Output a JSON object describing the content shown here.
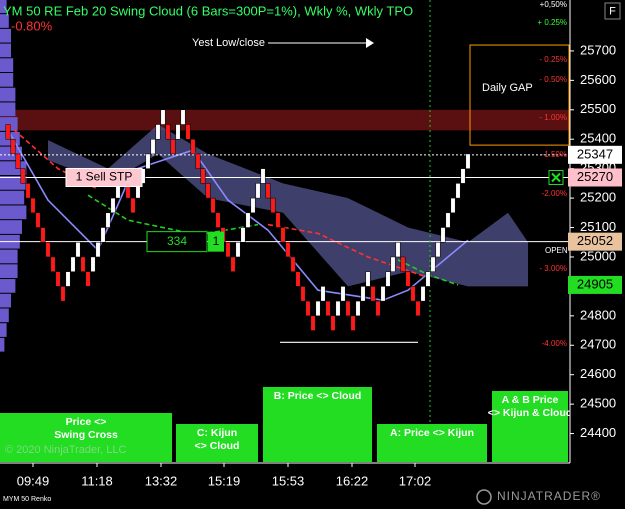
{
  "title": "YM 50 RE Feb 20 Swing Cloud (6 Bars=300P=1%), Wkly %, Wkly TPO",
  "change": "-0.80%",
  "button": "F",
  "instrument": "MYM 50 Renko",
  "copyright": "© 2020 NinjaTrader, LLC",
  "logo": "NINJATRADER®",
  "chart_data": {
    "type": "renko",
    "brick_size": 50,
    "up_color": "#ffffff",
    "down_color": "#ff1a1a",
    "closes": [
      25400,
      25350,
      25300,
      25250,
      25200,
      25150,
      25100,
      25050,
      25000,
      24950,
      24900,
      24850,
      24950,
      25000,
      25050,
      24950,
      24900,
      25000,
      25050,
      25100,
      25150,
      25200,
      25250,
      25300,
      25200,
      25150,
      25250,
      25300,
      25350,
      25400,
      25450,
      25500,
      25400,
      25350,
      25450,
      25500,
      25400,
      25350,
      25300,
      25250,
      25200,
      25150,
      25100,
      25050,
      25000,
      24950,
      25050,
      25100,
      25150,
      25200,
      25250,
      25300,
      25200,
      25150,
      25100,
      25050,
      25000,
      24950,
      24900,
      24850,
      24800,
      24750,
      24850,
      24900,
      24800,
      24750,
      24850,
      24900,
      24800,
      24750,
      24850,
      24900,
      24950,
      24850,
      24800,
      24900,
      24950,
      25000,
      25050,
      24950,
      24900,
      24850,
      24800,
      24900,
      24950,
      25000,
      25050,
      25100,
      25150,
      25200,
      25250,
      25300,
      25350
    ],
    "xlim": [
      -1.6,
      112.4
    ],
    "xticks": [
      {
        "value": 5,
        "label": "09:49"
      },
      {
        "value": 17.8,
        "label": "11:18"
      },
      {
        "value": 30.6,
        "label": "13:32"
      },
      {
        "value": 43.2,
        "label": "15:19"
      },
      {
        "value": 56,
        "label": "15:53"
      },
      {
        "value": 68.8,
        "label": "16:22"
      },
      {
        "value": 81.4,
        "label": "17:02"
      }
    ],
    "ylim": [
      24300,
      25873
    ],
    "yticks": [
      24400,
      24500,
      24600,
      24700,
      24800,
      24900,
      25000,
      25100,
      25200,
      25300,
      25400,
      25500,
      25600,
      25700
    ],
    "kijun": {
      "color": "#8a8aff",
      "x": [
        0,
        8,
        18,
        25,
        37,
        44,
        52,
        62,
        75,
        80,
        92
      ],
      "values": [
        25431,
        25193,
        25023,
        25295,
        25363,
        25193,
        25091,
        24887,
        24853,
        24887,
        25057
      ]
    },
    "red_line": {
      "color": "#ff3030",
      "x": [
        0,
        10,
        18,
        30,
        52,
        62,
        72,
        84
      ],
      "values": [
        25450,
        25300,
        25230,
        null,
        25110,
        25080,
        25000,
        24930
      ]
    },
    "green_line": {
      "color": "#22cc22",
      "x": [
        16,
        24,
        38,
        50,
        60,
        78,
        84,
        90
      ],
      "values": [
        25210,
        25125,
        25075,
        25110,
        null,
        24990,
        24940,
        24905
      ]
    },
    "cloud": {
      "color": "#5a5a99",
      "x": [
        8,
        20,
        30,
        40,
        55,
        68,
        80,
        92,
        100,
        104
      ],
      "upper": [
        25397,
        25300,
        25450,
        25350,
        25250,
        25200,
        25100,
        25050,
        25150,
        25050
      ],
      "lower": [
        25329,
        25250,
        25350,
        25200,
        25150,
        24900,
        24950,
        24900,
        24900,
        24900
      ]
    },
    "tpo": {
      "color": "#6a5acd",
      "start": 25850,
      "step": -50,
      "counts": [
        3,
        4,
        5,
        5,
        6,
        6,
        7,
        7,
        8,
        9,
        10,
        12,
        12,
        11,
        12,
        10,
        9,
        8,
        8,
        7,
        5,
        4,
        3,
        2
      ]
    },
    "percent_levels": [
      {
        "value": 25856,
        "label": "+0,50%",
        "color": "#ffffff"
      },
      {
        "value": 25795,
        "label": "+ 0.25%",
        "color": "#33ff33"
      },
      {
        "value": 25669,
        "label": "- 0.25%",
        "color": "#ff3333"
      },
      {
        "value": 25601,
        "label": "- 0.50%",
        "color": "#ff3333"
      },
      {
        "value": 25473,
        "label": "- 1.00%",
        "color": "#ff3333"
      },
      {
        "value": 25347,
        "label": "-1.50%",
        "color": "#ff3333"
      },
      {
        "value": 25214,
        "label": "-2.00%",
        "color": "#ff3333"
      },
      {
        "value": 24959,
        "label": "- 3.00%",
        "color": "#ff3333"
      },
      {
        "value": 24704,
        "label": "-4.00%",
        "color": "#ff3333"
      }
    ],
    "price_markers": [
      {
        "value": 25347,
        "color": "#ffffff"
      },
      {
        "value": 25270,
        "color": "#ffc0cb"
      },
      {
        "value": 25052,
        "color": "#e8c39e"
      },
      {
        "value": 24905,
        "color": "#22dd22"
      }
    ],
    "open_label": {
      "value": 25020,
      "label": "OPEN"
    },
    "hlines": [
      {
        "value": 25270,
        "style": "solid"
      },
      {
        "value": 25052,
        "style": "solid"
      },
      {
        "value": 25347,
        "style": "dotted"
      }
    ],
    "low_line": {
      "value": 24710
    },
    "red_band": {
      "top": 25500,
      "bottom": 25430
    },
    "daily_gap": {
      "label": "Daily GAP",
      "top": 25720,
      "bottom": 25380
    },
    "sell_stop": {
      "label": "1 Sell STP",
      "value": 25270
    },
    "counter": {
      "value": 334,
      "bars": 1,
      "price": 25052
    },
    "yest_label": "Yest Low/close",
    "signals": [
      "Price <> Swing Cross",
      "C: Kijun <> Cloud",
      "B: Price <> Cloud",
      "A: Price <> Kijun",
      "A & B Price <> Kijun & Cloud"
    ]
  }
}
